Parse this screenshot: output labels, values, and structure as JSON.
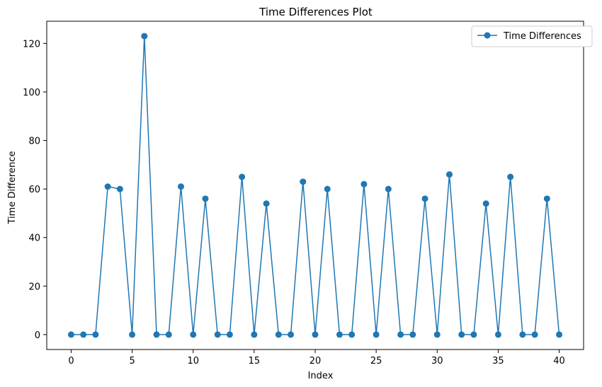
{
  "colors": {
    "series": "#1f77b4",
    "axes": "#000000",
    "legend_border": "#cccccc",
    "background": "#ffffff"
  },
  "chart_data": {
    "type": "line",
    "title": "Time Differences Plot",
    "xlabel": "Index",
    "ylabel": "Time Difference",
    "xlim": [
      -2,
      42
    ],
    "ylim": [
      -6.15,
      129.15
    ],
    "x_ticks": [
      0,
      5,
      10,
      15,
      20,
      25,
      30,
      35,
      40
    ],
    "y_ticks": [
      0,
      20,
      40,
      60,
      80,
      100,
      120
    ],
    "grid": false,
    "legend_position": "top-right",
    "marker": "circle",
    "series": [
      {
        "name": "Time Differences",
        "x": [
          0,
          1,
          2,
          3,
          4,
          5,
          6,
          7,
          8,
          9,
          10,
          11,
          12,
          13,
          14,
          15,
          16,
          17,
          18,
          19,
          20,
          21,
          22,
          23,
          24,
          25,
          26,
          27,
          28,
          29,
          30,
          31,
          32,
          33,
          34,
          35,
          36,
          37,
          38,
          39,
          40
        ],
        "values": [
          0,
          0,
          0,
          61,
          60,
          0,
          123,
          0,
          0,
          61,
          0,
          56,
          0,
          0,
          65,
          0,
          54,
          0,
          0,
          63,
          0,
          60,
          0,
          0,
          62,
          0,
          60,
          0,
          0,
          56,
          0,
          66,
          0,
          0,
          54,
          0,
          65,
          0,
          0,
          56,
          0
        ]
      }
    ]
  }
}
